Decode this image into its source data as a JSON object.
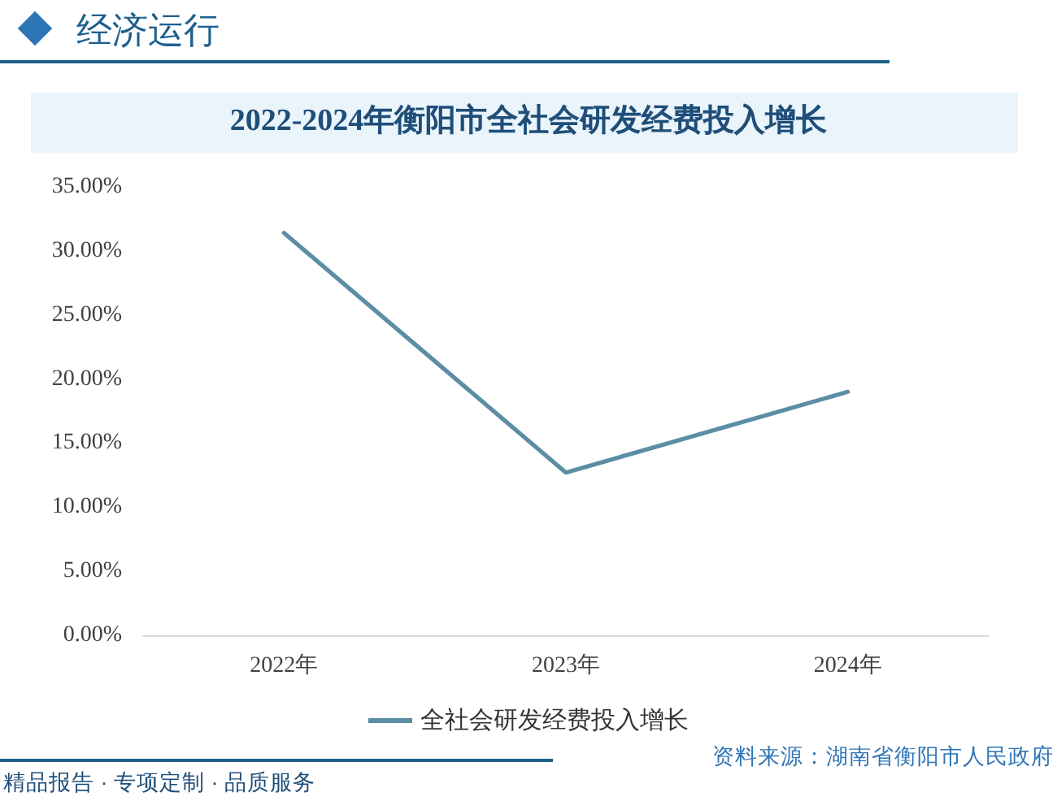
{
  "chart_data": {
    "type": "line",
    "title": "2022-2024年衡阳市全社会研发经费投入增长",
    "categories": [
      "2022年",
      "2023年",
      "2024年"
    ],
    "series": [
      {
        "name": "全社会研发经费投入增长",
        "color": "#5b8ea3",
        "values": [
          31.4,
          12.7,
          19.0
        ]
      }
    ],
    "ylim": [
      0,
      35
    ],
    "yticks": [
      {
        "value": 0,
        "label": "0.00%"
      },
      {
        "value": 5,
        "label": "5.00%"
      },
      {
        "value": 10,
        "label": "10.00%"
      },
      {
        "value": 15,
        "label": "15.00%"
      },
      {
        "value": 20,
        "label": "20.00%"
      },
      {
        "value": 25,
        "label": "25.00%"
      },
      {
        "value": 30,
        "label": "30.00%"
      },
      {
        "value": 35,
        "label": "35.00%"
      }
    ],
    "grid": false,
    "legend": "bottom",
    "marker": "none",
    "line_style": "solid",
    "annotations": [
      "经济运行",
      "资料来源：湖南省衡阳市人民政府",
      "精品报告 · 专项定制 · 品质服务"
    ]
  }
}
